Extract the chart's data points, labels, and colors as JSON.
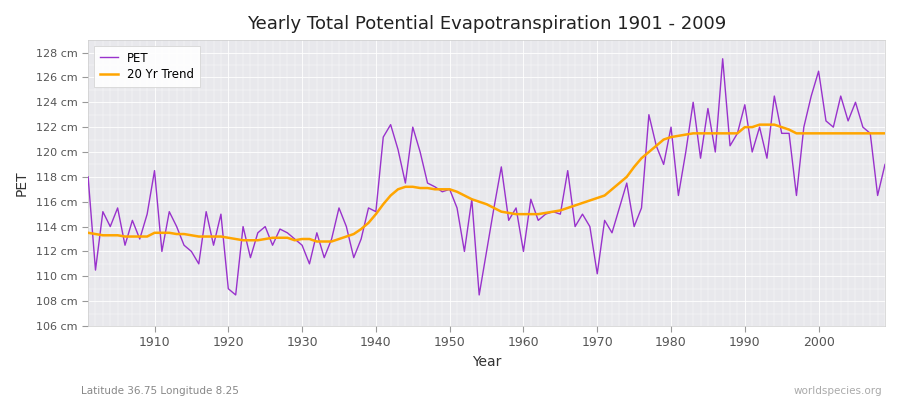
{
  "title": "Yearly Total Potential Evapotranspiration 1901 - 2009",
  "xlabel": "Year",
  "ylabel": "PET",
  "subtitle_left": "Latitude 36.75 Longitude 8.25",
  "subtitle_right": "worldspecies.org",
  "pet_color": "#9932CC",
  "trend_color": "#FFA500",
  "fig_bg_color": "#ffffff",
  "plot_bg_color": "#e8e8ec",
  "ylim": [
    106,
    129
  ],
  "ytick_step": 2,
  "xlim": [
    1901,
    2009
  ],
  "xticks": [
    1910,
    1920,
    1930,
    1940,
    1950,
    1960,
    1970,
    1980,
    1990,
    2000
  ],
  "years": [
    1901,
    1902,
    1903,
    1904,
    1905,
    1906,
    1907,
    1908,
    1909,
    1910,
    1911,
    1912,
    1913,
    1914,
    1915,
    1916,
    1917,
    1918,
    1919,
    1920,
    1921,
    1922,
    1923,
    1924,
    1925,
    1926,
    1927,
    1928,
    1929,
    1930,
    1931,
    1932,
    1933,
    1934,
    1935,
    1936,
    1937,
    1938,
    1939,
    1940,
    1941,
    1942,
    1943,
    1944,
    1945,
    1946,
    1947,
    1948,
    1949,
    1950,
    1951,
    1952,
    1953,
    1954,
    1955,
    1956,
    1957,
    1958,
    1959,
    1960,
    1961,
    1962,
    1963,
    1964,
    1965,
    1966,
    1967,
    1968,
    1969,
    1970,
    1971,
    1972,
    1973,
    1974,
    1975,
    1976,
    1977,
    1978,
    1979,
    1980,
    1981,
    1982,
    1983,
    1984,
    1985,
    1986,
    1987,
    1988,
    1989,
    1990,
    1991,
    1992,
    1993,
    1994,
    1995,
    1996,
    1997,
    1998,
    1999,
    2000,
    2001,
    2002,
    2003,
    2004,
    2005,
    2006,
    2007,
    2008,
    2009
  ],
  "pet_values": [
    118.0,
    110.5,
    115.2,
    114.0,
    115.5,
    112.5,
    114.5,
    113.0,
    115.0,
    118.5,
    112.0,
    115.2,
    114.0,
    112.5,
    112.0,
    111.0,
    115.2,
    112.5,
    115.0,
    109.0,
    108.5,
    114.0,
    111.5,
    113.5,
    114.0,
    112.5,
    113.8,
    113.5,
    113.0,
    112.5,
    111.0,
    113.5,
    111.5,
    113.0,
    115.5,
    114.0,
    111.5,
    113.0,
    115.5,
    115.2,
    121.2,
    122.2,
    120.2,
    117.5,
    122.0,
    120.0,
    117.5,
    117.2,
    116.8,
    117.0,
    115.5,
    112.0,
    116.2,
    108.5,
    112.0,
    115.5,
    118.8,
    114.5,
    115.5,
    112.0,
    116.2,
    114.5,
    115.0,
    115.2,
    115.0,
    118.5,
    114.0,
    115.0,
    114.0,
    110.2,
    114.5,
    113.5,
    115.5,
    117.5,
    114.0,
    115.5,
    123.0,
    120.5,
    119.0,
    122.0,
    116.5,
    120.0,
    124.0,
    119.5,
    123.5,
    120.0,
    127.5,
    120.5,
    121.5,
    123.8,
    120.0,
    122.0,
    119.5,
    124.5,
    121.5,
    121.5,
    116.5,
    122.0,
    124.5,
    126.5,
    122.5,
    122.0,
    124.5,
    122.5,
    124.0,
    122.0,
    121.5,
    116.5,
    119.0
  ],
  "trend_years": [
    1901,
    1902,
    1903,
    1904,
    1905,
    1906,
    1907,
    1908,
    1909,
    1910,
    1911,
    1912,
    1913,
    1914,
    1915,
    1916,
    1917,
    1918,
    1919,
    1920,
    1921,
    1922,
    1923,
    1924,
    1925,
    1926,
    1927,
    1928,
    1929,
    1930,
    1931,
    1932,
    1933,
    1934,
    1935,
    1936,
    1937,
    1938,
    1939,
    1940,
    1941,
    1942,
    1943,
    1944,
    1945,
    1946,
    1947,
    1948,
    1949,
    1950,
    1951,
    1952,
    1953,
    1954,
    1955,
    1956,
    1957,
    1958,
    1959,
    1960,
    1961,
    1962,
    1963,
    1964,
    1965,
    1966,
    1967,
    1968,
    1969,
    1970,
    1971,
    1972,
    1973,
    1974,
    1975,
    1976,
    1977,
    1978,
    1979,
    1980,
    1981,
    1982,
    1983,
    1984,
    1985,
    1986,
    1987,
    1988,
    1989,
    1990,
    1991,
    1992,
    1993,
    1994,
    1995,
    1996,
    1997,
    1998,
    1999,
    2000,
    2001,
    2002,
    2003,
    2004,
    2005,
    2006,
    2007,
    2008,
    2009
  ],
  "trend_values": [
    113.5,
    113.4,
    113.3,
    113.3,
    113.3,
    113.2,
    113.2,
    113.2,
    113.2,
    113.5,
    113.5,
    113.5,
    113.4,
    113.4,
    113.3,
    113.2,
    113.2,
    113.2,
    113.2,
    113.1,
    113.0,
    112.9,
    112.9,
    112.9,
    113.0,
    113.1,
    113.1,
    113.1,
    112.9,
    113.0,
    113.0,
    112.8,
    112.8,
    112.8,
    113.0,
    113.2,
    113.4,
    113.8,
    114.3,
    115.0,
    115.8,
    116.5,
    117.0,
    117.2,
    117.2,
    117.1,
    117.1,
    117.0,
    117.0,
    117.0,
    116.8,
    116.5,
    116.2,
    116.0,
    115.8,
    115.5,
    115.2,
    115.1,
    115.0,
    115.0,
    115.0,
    115.0,
    115.1,
    115.2,
    115.3,
    115.5,
    115.7,
    115.9,
    116.1,
    116.3,
    116.5,
    117.0,
    117.5,
    118.0,
    118.8,
    119.5,
    120.0,
    120.5,
    121.0,
    121.2,
    121.3,
    121.4,
    121.5,
    121.5,
    121.5,
    121.5,
    121.5,
    121.5,
    121.5,
    122.0,
    122.0,
    122.2,
    122.2,
    122.2,
    122.0,
    121.8,
    121.5,
    121.5,
    121.5,
    121.5,
    121.5,
    121.5,
    121.5,
    121.5,
    121.5,
    121.5,
    121.5,
    121.5,
    121.5
  ]
}
